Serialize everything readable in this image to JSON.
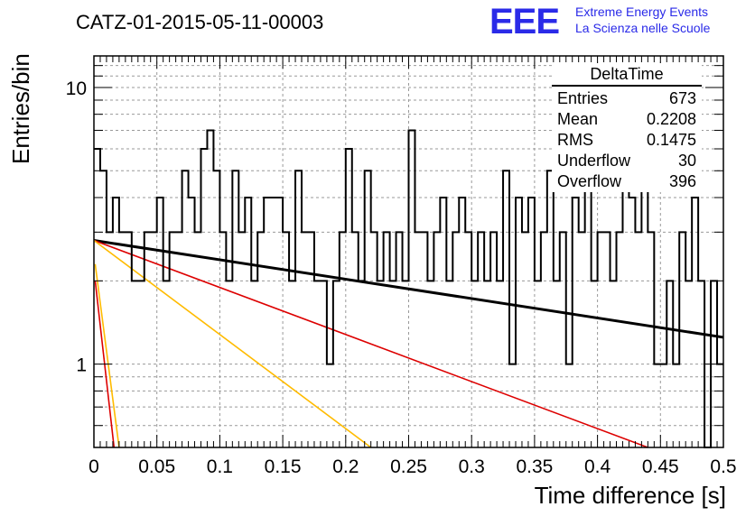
{
  "title": "CATZ-01-2015-05-11-00003",
  "logo": {
    "mark": "EEE",
    "line1": "Extreme Energy Events",
    "line2": "La Scienza nelle Scuole"
  },
  "stats_box": {
    "name": "DeltaTime",
    "rows": [
      {
        "label": "Entries",
        "value": "673"
      },
      {
        "label": "Mean",
        "value": "0.2208"
      },
      {
        "label": "RMS",
        "value": "0.1475"
      },
      {
        "label": "Underflow",
        "value": "30"
      },
      {
        "label": "Overflow",
        "value": "396"
      }
    ]
  },
  "chart_data": {
    "type": "line",
    "xlabel": "Time difference [s]",
    "ylabel": "Entries/bin",
    "xlim": [
      0,
      0.5
    ],
    "ylim": [
      0.5,
      13
    ],
    "yscale": "log",
    "grid": true,
    "xticks": [
      "0",
      "0.05",
      "0.1",
      "0.15",
      "0.2",
      "0.25",
      "0.3",
      "0.35",
      "0.4",
      "0.45",
      "0.5"
    ],
    "yticks": [
      "1",
      "10"
    ],
    "histogram": {
      "bin_width": 0.005,
      "values": [
        6,
        5,
        3,
        4,
        3,
        3,
        2,
        2,
        3,
        3,
        4,
        2,
        3,
        3,
        5,
        4,
        3,
        6,
        7,
        5,
        3,
        2,
        5,
        3,
        4,
        2,
        3,
        4,
        4,
        4,
        3,
        2,
        5,
        3,
        3,
        2,
        2,
        1,
        2,
        3,
        6,
        3,
        2,
        5,
        3,
        2,
        3,
        2,
        3,
        2,
        7,
        3,
        3,
        2,
        3,
        4,
        2,
        3,
        4,
        3,
        2,
        3,
        2,
        3,
        2,
        5,
        1,
        4,
        3,
        4,
        2,
        3,
        5,
        2,
        3,
        1,
        4,
        3,
        5,
        2,
        3,
        3,
        2,
        3,
        5,
        4,
        3,
        5,
        3,
        1,
        1,
        2,
        1,
        3,
        2,
        4,
        2,
        0.3,
        2,
        1
      ]
    },
    "curves": [
      {
        "color": "#000000",
        "x": [
          0,
          0.5
        ],
        "y": [
          2.8,
          1.25
        ]
      },
      {
        "color": "#dd0000",
        "x": [
          0,
          0.44
        ],
        "y": [
          2.8,
          0.5
        ]
      },
      {
        "color": "#ffbb00",
        "x": [
          0,
          0.22
        ],
        "y": [
          2.8,
          0.5
        ]
      },
      {
        "color": "#ffbb00",
        "x": [
          0.001,
          0.02
        ],
        "y": [
          2.3,
          0.5
        ]
      },
      {
        "color": "#dd0000",
        "x": [
          0.001,
          0.016
        ],
        "y": [
          2.0,
          0.5
        ]
      }
    ]
  }
}
